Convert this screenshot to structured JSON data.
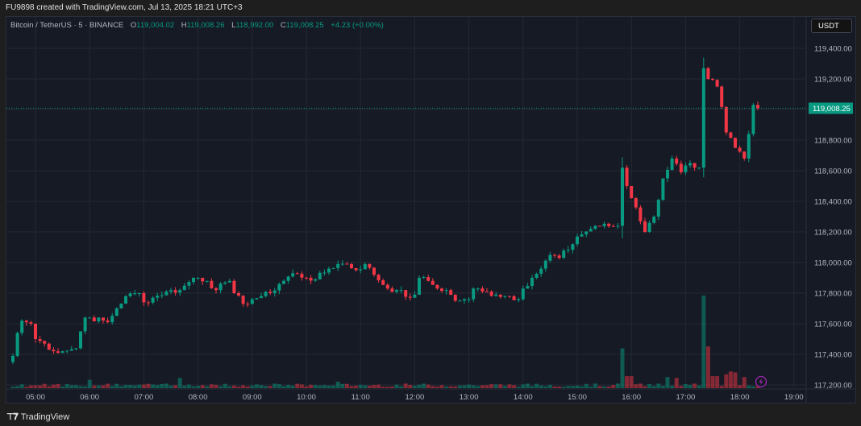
{
  "caption": "FU9898 created with TradingView.com, Jul 13, 2025 18:21 UTC+3",
  "legend": {
    "symbol": "Bitcoin / TetherUS · 5 · BINANCE",
    "o_label": "O",
    "o": "119,004.02",
    "h_label": "H",
    "h": "119,008.26",
    "l_label": "L",
    "l": "118,992.00",
    "c_label": "C",
    "c": "119,008.25",
    "change": "+4.23 (+0.00%)"
  },
  "currency_button": "USDT",
  "footer_brand": "TradingView",
  "footer_logo": "17",
  "colors": {
    "up": "#089981",
    "down": "#f23645",
    "background": "#161a25",
    "grid": "#242833",
    "last_price": "#089981",
    "flash": "#9c27b0"
  },
  "chart_data": {
    "type": "candlestick",
    "interval_minutes": 5,
    "start_time": "04:35",
    "last_price": 119008.25,
    "last_price_label": "119,008.25",
    "ylim": [
      117150,
      119450
    ],
    "y_ticks": [
      117200,
      117400,
      117600,
      117800,
      118000,
      118200,
      118400,
      118600,
      118800,
      119000,
      119200,
      119400
    ],
    "y_tick_labels": [
      "117,200.00",
      "117,400.00",
      "117,600.00",
      "117,800.00",
      "118,000.00",
      "118,200.00",
      "118,400.00",
      "118,600.00",
      "118,800.00",
      "",
      "119,200.00",
      "119,400.00"
    ],
    "x_tick_labels": [
      "05:00",
      "06:00",
      "07:00",
      "08:00",
      "09:00",
      "10:00",
      "11:00",
      "12:00",
      "13:00",
      "14:00",
      "15:00",
      "16:00",
      "17:00",
      "18:00",
      "19:00"
    ],
    "close_keyframes": [
      [
        "04:35",
        117390
      ],
      [
        "04:40",
        117540
      ],
      [
        "04:45",
        117620
      ],
      [
        "04:55",
        117600
      ],
      [
        "05:00",
        117500
      ],
      [
        "05:10",
        117470
      ],
      [
        "05:20",
        117420
      ],
      [
        "05:30",
        117420
      ],
      [
        "05:45",
        117440
      ],
      [
        "05:50",
        117550
      ],
      [
        "05:55",
        117640
      ],
      [
        "06:00",
        117640
      ],
      [
        "06:20",
        117610
      ],
      [
        "06:30",
        117700
      ],
      [
        "06:40",
        117780
      ],
      [
        "06:55",
        117800
      ],
      [
        "07:00",
        117740
      ],
      [
        "07:10",
        117770
      ],
      [
        "07:25",
        117810
      ],
      [
        "07:40",
        117820
      ],
      [
        "07:55",
        117900
      ],
      [
        "08:00",
        117900
      ],
      [
        "08:10",
        117880
      ],
      [
        "08:20",
        117820
      ],
      [
        "08:30",
        117870
      ],
      [
        "08:35",
        117880
      ],
      [
        "08:40",
        117800
      ],
      [
        "08:50",
        117730
      ],
      [
        "09:00",
        117760
      ],
      [
        "09:10",
        117780
      ],
      [
        "09:20",
        117800
      ],
      [
        "09:30",
        117860
      ],
      [
        "09:45",
        117930
      ],
      [
        "10:00",
        117900
      ],
      [
        "10:10",
        117890
      ],
      [
        "10:25",
        117960
      ],
      [
        "10:35",
        117990
      ],
      [
        "10:45",
        117990
      ],
      [
        "10:55",
        117950
      ],
      [
        "11:05",
        117990
      ],
      [
        "11:15",
        117920
      ],
      [
        "11:30",
        117830
      ],
      [
        "11:40",
        117820
      ],
      [
        "11:55",
        117770
      ],
      [
        "12:00",
        117790
      ],
      [
        "12:05",
        117900
      ],
      [
        "12:15",
        117880
      ],
      [
        "12:25",
        117830
      ],
      [
        "12:35",
        117820
      ],
      [
        "12:45",
        117750
      ],
      [
        "12:55",
        117760
      ],
      [
        "13:00",
        117760
      ],
      [
        "13:05",
        117830
      ],
      [
        "13:15",
        117810
      ],
      [
        "13:30",
        117790
      ],
      [
        "13:45",
        117780
      ],
      [
        "13:55",
        117760
      ],
      [
        "14:00",
        117830
      ],
      [
        "14:10",
        117900
      ],
      [
        "14:20",
        117960
      ],
      [
        "14:30",
        118050
      ],
      [
        "14:40",
        118030
      ],
      [
        "14:55",
        118120
      ],
      [
        "15:00",
        118170
      ],
      [
        "15:15",
        118220
      ],
      [
        "15:20",
        118240
      ],
      [
        "15:45",
        118240
      ],
      [
        "15:50",
        118620
      ],
      [
        "15:55",
        118500
      ],
      [
        "16:05",
        118360
      ],
      [
        "16:15",
        118200
      ],
      [
        "16:25",
        118300
      ],
      [
        "16:35",
        118550
      ],
      [
        "16:45",
        118680
      ],
      [
        "16:55",
        118590
      ],
      [
        "17:05",
        118650
      ],
      [
        "17:10",
        118620
      ],
      [
        "17:15",
        118620
      ],
      [
        "17:20",
        119270
      ],
      [
        "17:25",
        119200
      ],
      [
        "17:35",
        119150
      ],
      [
        "17:45",
        118850
      ],
      [
        "17:55",
        118750
      ],
      [
        "18:05",
        118680
      ],
      [
        "18:10",
        118840
      ],
      [
        "18:15",
        119030
      ],
      [
        "18:20",
        119008.25
      ]
    ],
    "volume_spikes": [
      [
        "06:00",
        0.09
      ],
      [
        "07:40",
        0.11
      ],
      [
        "10:35",
        0.07
      ],
      [
        "15:50",
        0.43
      ],
      [
        "15:55",
        0.13
      ],
      [
        "16:00",
        0.13
      ],
      [
        "16:40",
        0.12
      ],
      [
        "16:50",
        0.11
      ],
      [
        "17:20",
        1.0
      ],
      [
        "17:25",
        0.45
      ],
      [
        "17:30",
        0.13
      ],
      [
        "17:35",
        0.13
      ],
      [
        "17:45",
        0.15
      ],
      [
        "17:50",
        0.18
      ],
      [
        "17:55",
        0.17
      ],
      [
        "18:05",
        0.12
      ]
    ]
  }
}
